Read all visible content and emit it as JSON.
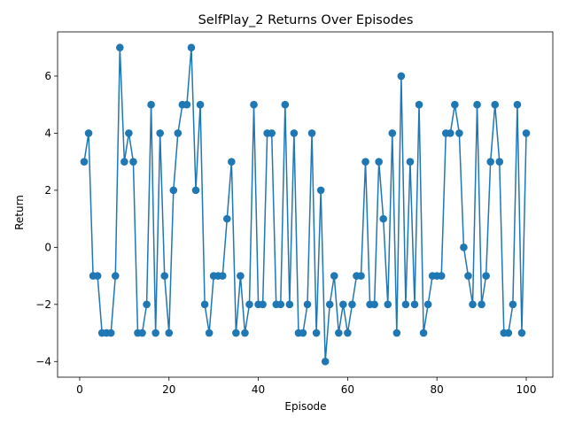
{
  "chart_data": {
    "type": "line",
    "title": "SelfPlay_2 Returns Over Episodes",
    "xlabel": "Episode",
    "ylabel": "Return",
    "xlim": [
      -4.95,
      105.95
    ],
    "ylim": [
      -4.55,
      7.55
    ],
    "xticks": [
      0,
      20,
      40,
      60,
      80,
      100
    ],
    "yticks": [
      -4,
      -2,
      0,
      2,
      4,
      6
    ],
    "grid": false,
    "marker": "circle",
    "series": [
      {
        "color": "#1f77b4",
        "x": [
          1,
          2,
          3,
          4,
          5,
          6,
          7,
          8,
          9,
          10,
          11,
          12,
          13,
          14,
          15,
          16,
          17,
          18,
          19,
          20,
          21,
          22,
          23,
          24,
          25,
          26,
          27,
          28,
          29,
          30,
          31,
          32,
          33,
          34,
          35,
          36,
          37,
          38,
          39,
          40,
          41,
          42,
          43,
          44,
          45,
          46,
          47,
          48,
          49,
          50,
          51,
          52,
          53,
          54,
          55,
          56,
          57,
          58,
          59,
          60,
          61,
          62,
          63,
          64,
          65,
          66,
          67,
          68,
          69,
          70,
          71,
          72,
          73,
          74,
          75,
          76,
          77,
          78,
          79,
          80,
          81,
          82,
          83,
          84,
          85,
          86,
          87,
          88,
          89,
          90,
          91,
          92,
          93,
          94,
          95,
          96,
          97,
          98,
          99,
          100
        ],
        "y": [
          3,
          4,
          -1,
          -1,
          -3,
          -3,
          -3,
          -1,
          7,
          3,
          4,
          3,
          -3,
          -3,
          -2,
          5,
          -3,
          4,
          -1,
          -3,
          2,
          4,
          5,
          5,
          7,
          2,
          5,
          -2,
          -3,
          -1,
          -1,
          -1,
          1,
          3,
          -3,
          -1,
          -3,
          -2,
          5,
          -2,
          -2,
          4,
          4,
          -2,
          -2,
          5,
          -2,
          4,
          -3,
          -3,
          -2,
          4,
          -3,
          2,
          -4,
          -2,
          -1,
          -3,
          -2,
          -3,
          -2,
          -1,
          -1,
          3,
          -2,
          -2,
          3,
          1,
          -2,
          4,
          -3,
          6,
          -2,
          3,
          -2,
          5,
          -3,
          -2,
          -1,
          -1,
          -1,
          4,
          4,
          5,
          4,
          0,
          -1,
          -2,
          5,
          -2,
          -1,
          3,
          5,
          3,
          -3,
          -3,
          -2,
          5,
          -3,
          4
        ]
      }
    ]
  }
}
